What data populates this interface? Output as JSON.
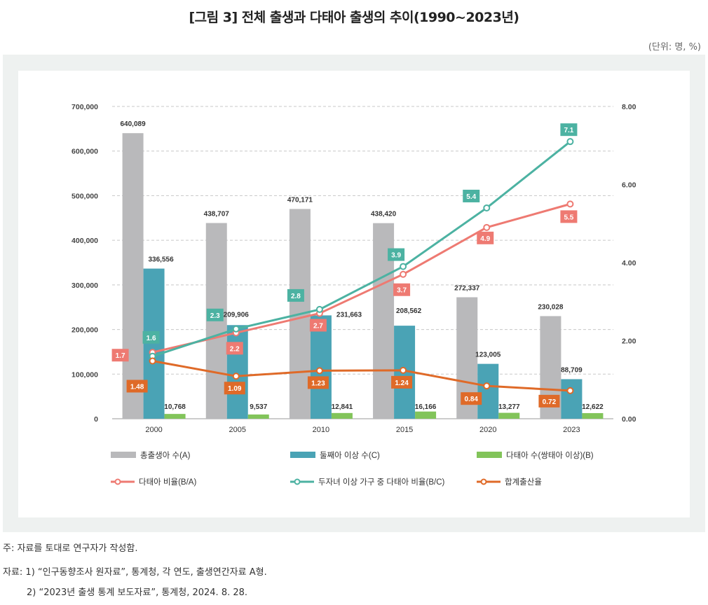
{
  "title": "[그림 3] 전체 출생과 다태아 출생의 추이(1990~2023년)",
  "unit": "(단위: 명, %)",
  "notes": {
    "note1": "주: 자료를 토대로 연구자가 작성함.",
    "source1": "자료: 1) “인구동향조사 원자료”, 통계청, 각 연도, 출생연간자료 A형.",
    "source2": "2) “2023년 출생 통계 보도자료”, 통계청, 2024. 8. 28."
  },
  "colors": {
    "total": "#b9b9bb",
    "second": "#4aa3b5",
    "multiple": "#82c45a",
    "ratio_ba": "#ee7a72",
    "ratio_bc": "#4cb2a2",
    "tfr": "#df6a28"
  },
  "chart_data": {
    "type": "bar",
    "categories": [
      "2000",
      "2005",
      "2010",
      "2015",
      "2020",
      "2023"
    ],
    "ylim_left": [
      0,
      700000
    ],
    "yticks_left": [
      "0",
      "100,000",
      "200,000",
      "300,000",
      "400,000",
      "500,000",
      "600,000",
      "700,000"
    ],
    "ylim_right": [
      0,
      8
    ],
    "yticks_right": [
      "0.00",
      "2.00",
      "4.00",
      "6.00",
      "8.00"
    ],
    "grid": true,
    "legend_position": "bottom",
    "bar_series": [
      {
        "name": "총출생아 수(A)",
        "values": [
          640089,
          438707,
          470171,
          438420,
          272337,
          230028
        ],
        "labels": [
          "640,089",
          "438,707",
          "470,171",
          "438,420",
          "272,337",
          "230,028"
        ]
      },
      {
        "name": "둘째아 이상 수(C)",
        "values": [
          336556,
          209906,
          231663,
          208562,
          123005,
          88709
        ],
        "labels": [
          "336,556",
          "209,906",
          "231,663",
          "208,562",
          "123,005",
          "88,709"
        ]
      },
      {
        "name": "다태아 수(쌍태아 이상)(B)",
        "values": [
          10768,
          9537,
          12841,
          16166,
          13277,
          12622
        ],
        "labels": [
          "10,768",
          "9,537",
          "12,841",
          "16,166",
          "13,277",
          "12,622"
        ]
      }
    ],
    "line_series": [
      {
        "name": "다태아 비율(B/A)",
        "values": [
          1.7,
          2.2,
          2.7,
          3.7,
          4.9,
          5.5
        ],
        "labels": [
          "1.7",
          "2.2",
          "2.7",
          "3.7",
          "4.9",
          "5.5"
        ]
      },
      {
        "name": "두자녀 이상 가구 중 다태아 비율(B/C)",
        "values": [
          1.6,
          2.3,
          2.8,
          3.9,
          5.4,
          7.1
        ],
        "labels": [
          "1.6",
          "2.3",
          "2.8",
          "3.9",
          "5.4",
          "7.1"
        ]
      },
      {
        "name": "합계출산율",
        "values": [
          1.48,
          1.09,
          1.23,
          1.24,
          0.84,
          0.72
        ],
        "labels": [
          "1.48",
          "1.09",
          "1.23",
          "1.24",
          "0.84",
          "0.72"
        ]
      }
    ]
  }
}
